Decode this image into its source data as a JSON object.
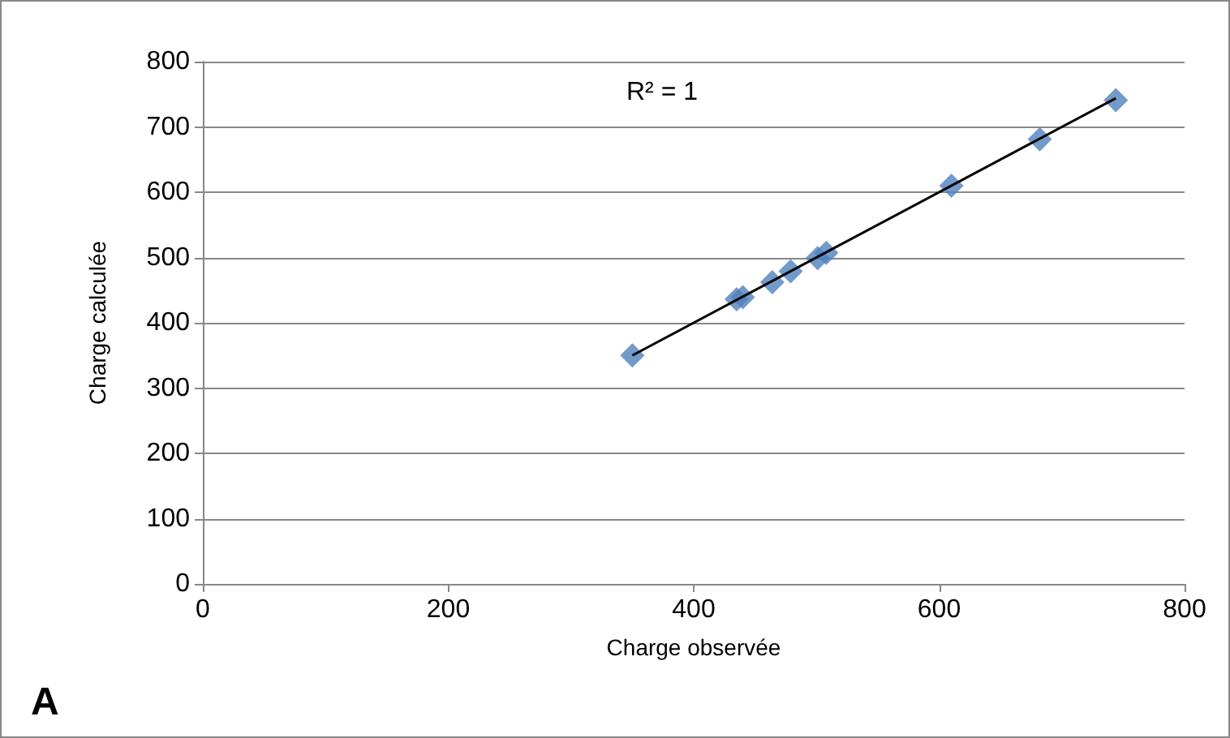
{
  "chart_data": {
    "type": "scatter",
    "xlabel": "Charge observée",
    "ylabel": "Charge calculée",
    "annotations": [
      "R² = 1",
      "A"
    ],
    "series": [
      {
        "color": "#4f81bd",
        "marker": "diamond",
        "x": [
          350,
          435,
          440,
          464,
          479,
          501,
          508,
          610,
          682,
          744
        ],
        "values": [
          350,
          436,
          439,
          462,
          479,
          499,
          507,
          610,
          681,
          741
        ]
      },
      {
        "type": "line",
        "color": "#000000",
        "marker": "none",
        "x": [
          350,
          744
        ],
        "values": [
          350,
          744
        ]
      }
    ],
    "xlim": [
      0,
      800
    ],
    "xticks": [
      0,
      200,
      400,
      600,
      800
    ],
    "ylim": [
      0,
      800
    ],
    "yticks": [
      0,
      100,
      200,
      300,
      400,
      500,
      600,
      700,
      800
    ],
    "grid": "y"
  }
}
